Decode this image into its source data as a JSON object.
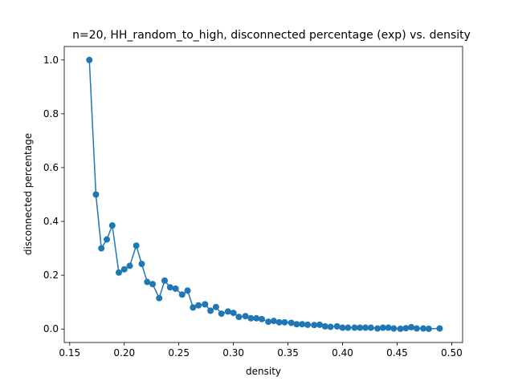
{
  "chart_data": {
    "type": "line",
    "title": "n=20, HH_random_to_high, disconnected percentage (exp) vs. density",
    "xlabel": "density",
    "ylabel": "disconnected percentage",
    "xlim": [
      0.145,
      0.51
    ],
    "ylim": [
      -0.05,
      1.05
    ],
    "xticks": [
      "0.15",
      "0.20",
      "0.25",
      "0.30",
      "0.35",
      "0.40",
      "0.45",
      "0.50"
    ],
    "yticks": [
      "0.0",
      "0.2",
      "0.4",
      "0.6",
      "0.8",
      "1.0"
    ],
    "grid": false,
    "color": "#1f77b4",
    "markers": true,
    "x": [
      0.168,
      0.174,
      0.179,
      0.184,
      0.189,
      0.195,
      0.2,
      0.205,
      0.211,
      0.216,
      0.221,
      0.226,
      0.232,
      0.237,
      0.242,
      0.247,
      0.253,
      0.258,
      0.263,
      0.268,
      0.274,
      0.279,
      0.284,
      0.289,
      0.295,
      0.3,
      0.305,
      0.311,
      0.316,
      0.321,
      0.326,
      0.332,
      0.337,
      0.342,
      0.347,
      0.353,
      0.358,
      0.363,
      0.368,
      0.374,
      0.379,
      0.384,
      0.389,
      0.395,
      0.4,
      0.405,
      0.411,
      0.416,
      0.421,
      0.426,
      0.432,
      0.437,
      0.442,
      0.447,
      0.453,
      0.458,
      0.463,
      0.468,
      0.474,
      0.479,
      0.489
    ],
    "y": [
      1.0,
      0.5,
      0.3,
      0.333,
      0.385,
      0.21,
      0.222,
      0.235,
      0.31,
      0.242,
      0.175,
      0.167,
      0.115,
      0.18,
      0.155,
      0.15,
      0.128,
      0.143,
      0.08,
      0.088,
      0.092,
      0.068,
      0.082,
      0.057,
      0.065,
      0.06,
      0.045,
      0.048,
      0.04,
      0.04,
      0.037,
      0.027,
      0.03,
      0.025,
      0.025,
      0.023,
      0.018,
      0.018,
      0.016,
      0.015,
      0.016,
      0.01,
      0.008,
      0.01,
      0.005,
      0.005,
      0.005,
      0.005,
      0.005,
      0.005,
      0.002,
      0.005,
      0.005,
      0.002,
      0.001,
      0.003,
      0.007,
      0.002,
      0.002,
      0.001,
      0.002
    ]
  }
}
